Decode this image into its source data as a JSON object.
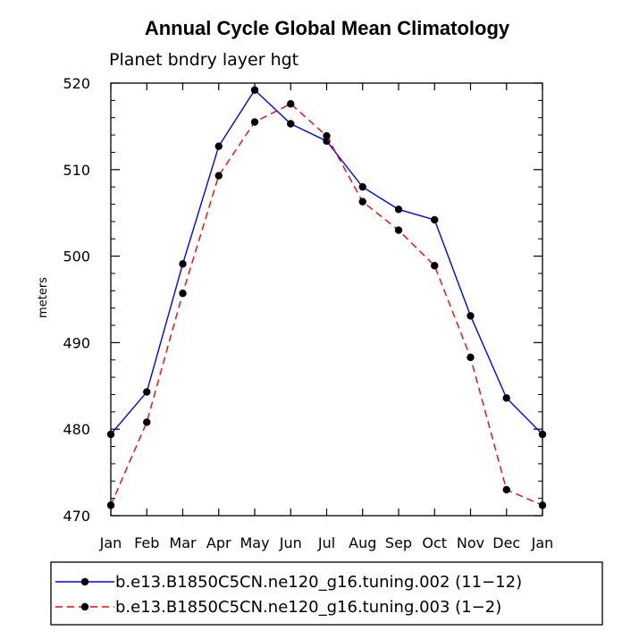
{
  "chart_data": {
    "type": "line",
    "title": "Annual Cycle Global Mean Climatology",
    "subtitle": "Planet bndry layer hgt",
    "xlabel": "",
    "ylabel": "meters",
    "categories": [
      "Jan",
      "Feb",
      "Mar",
      "Apr",
      "May",
      "Jun",
      "Jul",
      "Aug",
      "Sep",
      "Oct",
      "Nov",
      "Dec",
      "Jan"
    ],
    "ylim": [
      470,
      520
    ],
    "yticks": [
      470,
      480,
      490,
      500,
      510,
      520
    ],
    "ytick_labels": [
      "470",
      "480",
      "490",
      "500",
      "510",
      "520"
    ],
    "series": [
      {
        "name": "b.e13.B1850C5CN.ne120_g16.tuning.002 (11−12)",
        "color": "#0000ff",
        "dash": "solid",
        "values": [
          479.4,
          484.3,
          499.1,
          512.7,
          519.2,
          515.3,
          513.3,
          508.0,
          505.4,
          504.2,
          493.1,
          483.6,
          479.4
        ]
      },
      {
        "name": "b.e13.B1850C5CN.ne120_g16.tuning.003 (1−2)",
        "color": "#ff0000",
        "dash": "dashed",
        "values": [
          471.2,
          480.8,
          495.7,
          509.3,
          515.5,
          517.6,
          513.9,
          506.3,
          503.0,
          498.9,
          488.3,
          473.0,
          471.2
        ]
      }
    ],
    "legend_position": "bottom"
  }
}
